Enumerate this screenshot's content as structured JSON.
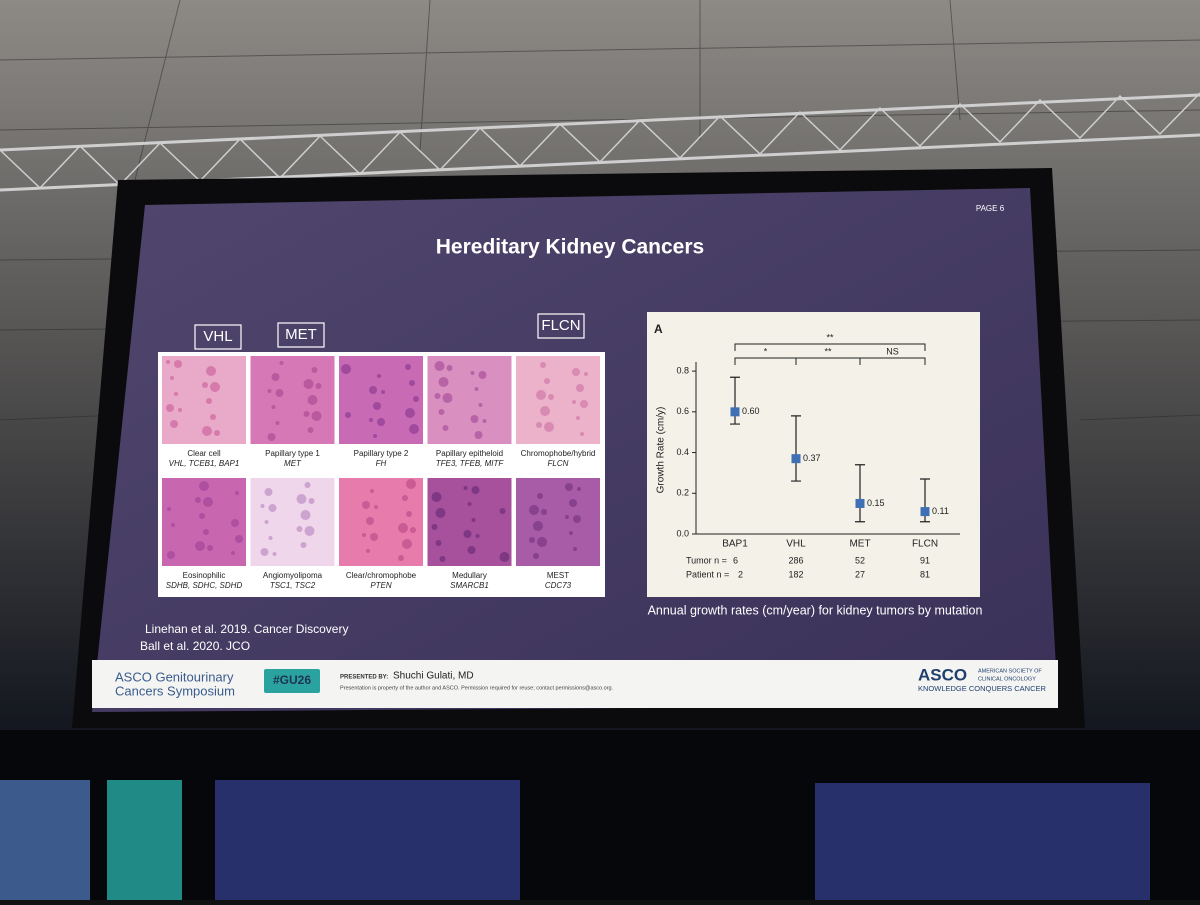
{
  "slide": {
    "page": "PAGE 6",
    "title": "Hereditary Kidney Cancers",
    "gene_boxes": [
      "VHL",
      "MET",
      "FLCN"
    ],
    "panels": [
      {
        "name": "Clear cell",
        "genes": "VHL, TCEB1, BAP1"
      },
      {
        "name": "Papillary type 1",
        "genes": "MET"
      },
      {
        "name": "Papillary type 2",
        "genes": "FH"
      },
      {
        "name": "Papillary epitheloid",
        "genes": "TFE3, TFEB, MITF"
      },
      {
        "name": "Chromophobe/hybrid",
        "genes": "FLCN"
      },
      {
        "name": "Eosinophilic",
        "genes": "SDHB, SDHC, SDHD"
      },
      {
        "name": "Angiomyolipoma",
        "genes": "TSC1, TSC2"
      },
      {
        "name": "Clear/chromophobe",
        "genes": "PTEN"
      },
      {
        "name": "Medullary",
        "genes": "SMARCB1"
      },
      {
        "name": "MEST",
        "genes": "CDC73"
      }
    ],
    "references": [
      "Linehan et al. 2019. Cancer Discovery",
      "Ball et al. 2020. JCO"
    ],
    "caption": "Annual growth rates (cm/year) for kidney tumors by mutation",
    "footer": {
      "symposium": [
        "ASCO Genitourinary",
        "Cancers Symposium"
      ],
      "hashtag": "#GU26",
      "presented_by": "PRESENTED BY:",
      "presenter": "Shuchi Gulati, MD",
      "notice": "Presentation is property of the author and ASCO. Permission required for reuse; contact permissions@asco.org.",
      "logo": "ASCO",
      "society": [
        "AMERICAN SOCIETY OF",
        "CLINICAL ONCOLOGY"
      ],
      "tagline": "KNOWLEDGE CONQUERS CANCER"
    }
  },
  "chart_data": {
    "type": "errorbar",
    "panel_label": "A",
    "ylabel": "Growth Rate (cm/y)",
    "categories": [
      "BAP1",
      "VHL",
      "MET",
      "FLCN"
    ],
    "values": [
      0.6,
      0.37,
      0.15,
      0.11
    ],
    "value_labels": [
      "0.60",
      "0.37",
      "0.15",
      "0.11"
    ],
    "lower": [
      0.54,
      0.26,
      0.06,
      0.06
    ],
    "upper": [
      0.77,
      0.58,
      0.34,
      0.27
    ],
    "color": "#3f6fb5",
    "ylim": [
      0,
      0.83
    ],
    "yticks": [
      {
        "value": 0,
        "label": "0.0"
      },
      0.2,
      0.4,
      0.6,
      0.8
    ],
    "significance": [
      "**",
      "*",
      "**",
      "NS"
    ],
    "n_rows": [
      {
        "label": "Tumor n =",
        "values": [
          6,
          286,
          52,
          91
        ]
      },
      {
        "label": "Patient n =",
        "values": [
          2,
          182,
          27,
          81
        ]
      }
    ]
  }
}
